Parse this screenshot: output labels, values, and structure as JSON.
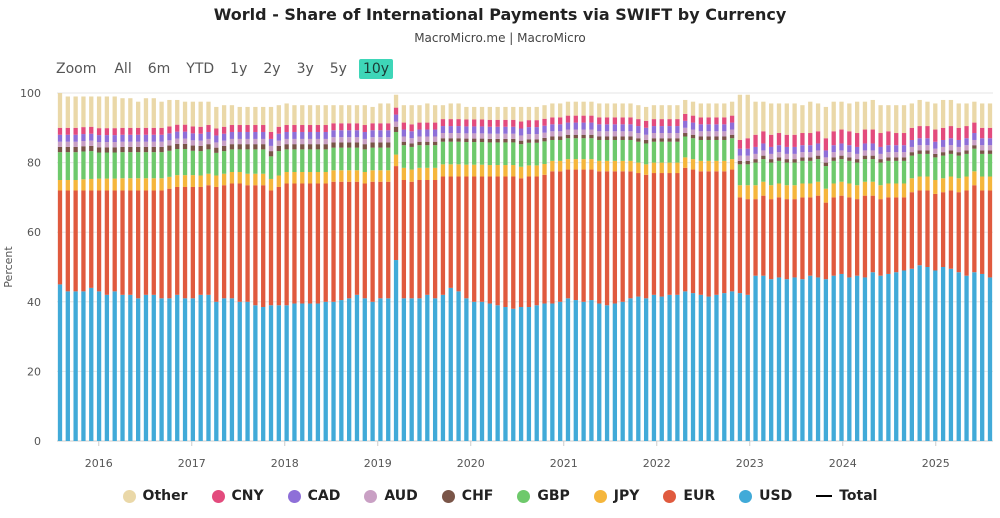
{
  "title": "World - Share of International Payments via SWIFT by Currency",
  "subtitle": "MacroMicro.me | MacroMicro",
  "zoom": {
    "label": "Zoom",
    "buttons": [
      "All",
      "6m",
      "YTD",
      "1y",
      "2y",
      "3y",
      "5y",
      "10y"
    ],
    "active": "10y"
  },
  "chart_data": {
    "type": "bar",
    "stacked": true,
    "ylabel": "Percent",
    "ylim": [
      0,
      100
    ],
    "yticks": [
      0,
      20,
      40,
      60,
      80,
      100
    ],
    "x_tick_labels": [
      "2016",
      "2017",
      "2018",
      "2019",
      "2020",
      "2021",
      "2022",
      "2023",
      "2024",
      "2025"
    ],
    "x_start": "2015-08",
    "x_end": "2025-08",
    "grid": "horizontal",
    "legend_position": "bottom",
    "series": [
      {
        "name": "USD",
        "color": "#41aad8",
        "values": [
          45.0,
          43.0,
          43.0,
          43.0,
          44.0,
          43.0,
          42.0,
          43.0,
          42.0,
          42.0,
          41.0,
          42.0,
          42.0,
          41.0,
          41.0,
          42.0,
          41.0,
          41.0,
          42.0,
          42.0,
          40.0,
          41.0,
          41.0,
          40.0,
          40.0,
          39.0,
          38.5,
          39.0,
          39.0,
          39.0,
          39.5,
          39.5,
          39.5,
          39.5,
          40.0,
          40.0,
          40.5,
          41.0,
          42.0,
          41.0,
          40.0,
          41.0,
          41.0,
          52.0,
          41.0,
          41.0,
          41.0,
          42.0,
          41.0,
          42.0,
          44.0,
          43.0,
          41.0,
          40.0,
          40.0,
          39.5,
          39.0,
          38.5,
          38.0,
          38.5,
          38.5,
          39.0,
          39.5,
          39.5,
          40.0,
          41.0,
          40.5,
          40.0,
          40.5,
          39.5,
          39.0,
          39.5,
          40.0,
          41.0,
          41.5,
          41.0,
          42.0,
          41.5,
          42.0,
          42.0,
          43.0,
          42.5,
          42.0,
          41.5,
          42.0,
          42.5,
          43.0,
          42.5,
          42.0,
          47.5,
          47.5,
          46.5,
          47.0,
          46.5,
          47.0,
          46.5,
          47.5,
          47.0,
          46.5,
          47.5,
          48.0,
          47.0,
          47.5,
          47.0,
          48.5,
          47.5,
          48.0,
          48.5,
          49.0,
          49.5,
          50.5,
          50.0,
          49.0,
          50.0,
          49.5,
          48.5,
          47.5,
          48.5,
          48.0,
          47.0
        ]
      },
      {
        "name": "EUR",
        "color": "#e05a3e",
        "values": [
          27.0,
          29.0,
          29.0,
          29.0,
          28.0,
          29.0,
          30.0,
          29.0,
          30.0,
          30.0,
          31.0,
          30.0,
          30.0,
          31.0,
          31.5,
          31.0,
          32.0,
          32.0,
          31.0,
          31.5,
          33.0,
          32.5,
          33.0,
          34.0,
          33.5,
          34.5,
          35.0,
          33.0,
          34.0,
          35.0,
          34.5,
          34.5,
          34.5,
          34.5,
          34.0,
          34.5,
          34.0,
          33.5,
          32.5,
          33.0,
          34.5,
          33.5,
          33.5,
          27.0,
          34.0,
          33.5,
          34.0,
          33.0,
          34.0,
          34.0,
          32.0,
          33.0,
          35.0,
          36.0,
          36.0,
          36.5,
          37.0,
          37.5,
          38.0,
          37.0,
          37.5,
          37.0,
          37.0,
          38.0,
          37.5,
          37.0,
          37.5,
          38.0,
          37.5,
          38.0,
          38.5,
          38.0,
          37.5,
          36.5,
          35.5,
          35.5,
          35.0,
          35.5,
          35.0,
          35.0,
          35.5,
          35.5,
          35.5,
          36.0,
          35.5,
          35.0,
          35.0,
          27.5,
          27.5,
          22.0,
          23.0,
          23.0,
          23.0,
          23.0,
          22.5,
          23.5,
          22.5,
          23.5,
          22.0,
          22.5,
          22.5,
          23.0,
          22.0,
          23.5,
          22.0,
          22.0,
          22.0,
          21.5,
          21.0,
          22.0,
          21.5,
          22.0,
          22.0,
          21.5,
          22.5,
          23.0,
          24.5,
          25.0,
          24.0,
          25.0
        ]
      },
      {
        "name": "JPY",
        "color": "#f5b63c",
        "values": [
          3.0,
          3.0,
          3.0,
          3.2,
          3.3,
          3.4,
          3.4,
          3.4,
          3.5,
          3.5,
          3.5,
          3.5,
          3.5,
          3.5,
          3.4,
          3.4,
          3.4,
          3.4,
          3.3,
          3.3,
          3.3,
          3.3,
          3.3,
          3.3,
          3.3,
          3.3,
          3.3,
          3.3,
          3.3,
          3.3,
          3.3,
          3.3,
          3.3,
          3.3,
          3.3,
          3.3,
          3.3,
          3.3,
          3.3,
          3.3,
          3.3,
          3.3,
          3.3,
          3.3,
          3.5,
          3.5,
          3.5,
          3.5,
          3.5,
          3.5,
          3.5,
          3.5,
          3.4,
          3.4,
          3.4,
          3.3,
          3.3,
          3.3,
          3.3,
          3.3,
          3.2,
          3.2,
          3.1,
          3.0,
          3.0,
          3.0,
          3.0,
          3.0,
          3.0,
          3.0,
          3.0,
          3.0,
          3.0,
          3.0,
          3.0,
          3.0,
          3.0,
          3.0,
          3.0,
          3.0,
          3.0,
          3.0,
          3.0,
          3.0,
          3.0,
          3.0,
          3.0,
          3.5,
          4.0,
          4.0,
          4.0,
          4.0,
          4.0,
          4.0,
          4.0,
          4.0,
          4.0,
          4.0,
          4.0,
          4.0,
          4.0,
          4.0,
          4.0,
          4.0,
          4.0,
          4.0,
          4.0,
          4.0,
          4.0,
          4.0,
          4.0,
          4.0,
          4.0,
          4.0,
          4.0,
          4.0,
          4.0,
          4.0,
          4.0,
          4.0
        ]
      },
      {
        "name": "GBP",
        "color": "#6ec96b",
        "values": [
          8.0,
          8.0,
          8.0,
          8.0,
          8.0,
          7.5,
          7.5,
          7.5,
          7.5,
          7.5,
          7.5,
          7.5,
          7.5,
          7.5,
          7.5,
          7.5,
          7.5,
          7.0,
          7.0,
          7.0,
          6.5,
          6.5,
          6.5,
          6.5,
          7.0,
          7.0,
          7.0,
          6.5,
          7.0,
          6.5,
          6.5,
          6.5,
          6.5,
          6.5,
          6.5,
          6.5,
          6.5,
          6.5,
          6.5,
          6.5,
          6.5,
          6.5,
          6.5,
          6.5,
          6.5,
          6.5,
          6.5,
          6.5,
          6.5,
          6.5,
          6.5,
          6.5,
          6.5,
          6.5,
          6.5,
          6.5,
          6.5,
          6.5,
          6.5,
          6.5,
          6.5,
          6.5,
          6.5,
          6.0,
          6.0,
          6.0,
          6.0,
          6.0,
          6.0,
          6.0,
          6.0,
          6.0,
          6.0,
          6.0,
          6.0,
          6.0,
          6.0,
          6.0,
          6.0,
          6.0,
          6.0,
          6.0,
          6.0,
          6.0,
          6.0,
          6.0,
          6.0,
          6.0,
          6.0,
          6.5,
          6.5,
          6.5,
          6.5,
          6.5,
          6.5,
          6.5,
          6.5,
          6.5,
          6.5,
          6.5,
          6.5,
          6.5,
          6.5,
          6.5,
          6.5,
          6.5,
          6.5,
          6.5,
          6.5,
          6.5,
          6.5,
          6.5,
          6.5,
          6.5,
          6.5,
          6.5,
          6.5,
          6.5,
          6.5,
          6.5
        ]
      },
      {
        "name": "CHF",
        "color": "#7a5548",
        "values": [
          1.5,
          1.5,
          1.5,
          1.5,
          1.5,
          1.5,
          1.5,
          1.5,
          1.5,
          1.5,
          1.5,
          1.5,
          1.5,
          1.5,
          1.5,
          1.5,
          1.5,
          1.5,
          1.5,
          1.5,
          1.5,
          1.5,
          1.5,
          1.5,
          1.5,
          1.5,
          1.5,
          1.5,
          1.5,
          1.5,
          1.5,
          1.5,
          1.5,
          1.5,
          1.5,
          1.5,
          1.5,
          1.5,
          1.5,
          1.5,
          1.5,
          1.5,
          1.5,
          1.5,
          1.0,
          1.0,
          1.0,
          1.0,
          1.0,
          1.0,
          1.0,
          1.0,
          1.0,
          1.0,
          1.0,
          1.0,
          1.0,
          1.0,
          1.0,
          1.0,
          1.0,
          1.0,
          1.0,
          1.0,
          1.0,
          1.0,
          1.0,
          1.0,
          1.0,
          1.0,
          1.0,
          1.0,
          1.0,
          1.0,
          1.0,
          1.0,
          1.0,
          1.0,
          1.0,
          1.0,
          1.0,
          1.0,
          1.0,
          1.0,
          1.0,
          1.0,
          1.0,
          1.0,
          1.0,
          1.0,
          1.0,
          1.0,
          1.0,
          1.0,
          1.0,
          1.0,
          1.0,
          1.0,
          1.0,
          1.0,
          1.0,
          1.0,
          1.0,
          1.0,
          1.0,
          1.0,
          1.0,
          1.0,
          1.0,
          1.0,
          1.0,
          1.0,
          1.0,
          1.0,
          1.0,
          1.0,
          1.0,
          1.0,
          1.0,
          1.0
        ]
      },
      {
        "name": "AUD",
        "color": "#c9a0c4",
        "values": [
          1.5,
          1.5,
          1.5,
          1.5,
          1.5,
          1.5,
          1.5,
          1.5,
          1.5,
          1.5,
          1.5,
          1.5,
          1.5,
          1.5,
          1.5,
          1.5,
          1.5,
          1.5,
          1.5,
          1.5,
          1.5,
          1.5,
          1.5,
          1.5,
          1.5,
          1.5,
          1.5,
          1.5,
          1.5,
          1.5,
          1.5,
          1.5,
          1.5,
          1.5,
          1.5,
          1.5,
          1.5,
          1.5,
          1.5,
          1.5,
          1.5,
          1.5,
          1.5,
          1.5,
          1.5,
          1.5,
          1.5,
          1.5,
          1.5,
          1.5,
          1.5,
          1.5,
          1.5,
          1.5,
          1.5,
          1.5,
          1.5,
          1.5,
          1.5,
          1.5,
          1.5,
          1.5,
          1.5,
          1.5,
          1.5,
          1.5,
          1.5,
          1.5,
          1.5,
          1.5,
          1.5,
          1.5,
          1.5,
          1.5,
          1.5,
          1.5,
          1.5,
          1.5,
          1.5,
          1.5,
          1.5,
          1.5,
          1.5,
          1.5,
          1.5,
          1.5,
          1.5,
          1.5,
          1.5,
          1.5,
          1.5,
          1.5,
          1.5,
          1.5,
          1.5,
          1.5,
          1.5,
          1.5,
          1.5,
          1.5,
          1.5,
          1.5,
          1.5,
          1.5,
          1.5,
          1.5,
          1.5,
          1.5,
          1.5,
          1.5,
          1.5,
          1.5,
          1.5,
          1.5,
          1.5,
          1.5,
          1.5,
          1.5,
          1.5,
          1.5
        ]
      },
      {
        "name": "CAD",
        "color": "#8e6fd8",
        "values": [
          2.0,
          2.0,
          2.0,
          2.0,
          2.0,
          2.0,
          2.0,
          2.0,
          2.0,
          2.0,
          2.0,
          2.0,
          2.0,
          2.0,
          2.0,
          2.0,
          2.0,
          2.0,
          2.0,
          2.0,
          2.0,
          2.0,
          2.0,
          2.0,
          2.0,
          2.0,
          2.0,
          2.0,
          2.0,
          2.0,
          2.0,
          2.0,
          2.0,
          2.0,
          2.0,
          2.0,
          2.0,
          2.0,
          2.0,
          2.0,
          2.0,
          2.0,
          2.0,
          2.0,
          2.0,
          2.0,
          2.0,
          2.0,
          2.0,
          2.0,
          2.0,
          2.0,
          2.0,
          2.0,
          2.0,
          2.0,
          2.0,
          2.0,
          2.0,
          2.0,
          2.0,
          2.0,
          2.0,
          2.0,
          2.0,
          2.0,
          2.0,
          2.0,
          2.0,
          2.0,
          2.0,
          2.0,
          2.0,
          2.0,
          2.0,
          2.0,
          2.0,
          2.0,
          2.0,
          2.0,
          2.0,
          2.0,
          2.0,
          2.0,
          2.0,
          2.0,
          2.0,
          2.0,
          2.0,
          2.0,
          2.0,
          2.0,
          2.0,
          2.0,
          2.0,
          2.0,
          2.0,
          2.0,
          2.0,
          2.0,
          2.0,
          2.0,
          2.0,
          2.0,
          2.0,
          2.0,
          2.0,
          2.0,
          2.0,
          2.0,
          2.0,
          2.0,
          2.0,
          2.0,
          2.0,
          2.0,
          2.0,
          2.0,
          2.0,
          2.0
        ]
      },
      {
        "name": "CNY",
        "color": "#e34b7d",
        "values": [
          2.0,
          2.0,
          2.0,
          2.0,
          2.0,
          2.0,
          2.0,
          2.0,
          2.0,
          2.0,
          2.0,
          2.0,
          2.0,
          2.0,
          2.0,
          2.0,
          2.0,
          2.0,
          2.0,
          2.0,
          2.0,
          2.0,
          2.0,
          2.0,
          2.0,
          2.0,
          2.0,
          2.0,
          2.0,
          2.0,
          2.0,
          2.0,
          2.0,
          2.0,
          2.0,
          2.0,
          2.0,
          2.0,
          2.0,
          2.0,
          2.0,
          2.0,
          2.0,
          2.0,
          2.0,
          2.0,
          2.0,
          2.0,
          2.0,
          2.0,
          2.0,
          2.0,
          2.0,
          2.0,
          2.0,
          2.0,
          2.0,
          2.0,
          2.0,
          2.0,
          2.0,
          2.0,
          2.0,
          2.0,
          2.0,
          2.0,
          2.0,
          2.0,
          2.0,
          2.0,
          2.0,
          2.0,
          2.0,
          2.0,
          2.0,
          2.0,
          2.0,
          2.0,
          2.0,
          2.0,
          2.0,
          2.0,
          2.0,
          2.0,
          2.0,
          2.0,
          2.0,
          2.5,
          3.0,
          3.5,
          3.5,
          3.5,
          3.5,
          3.5,
          3.5,
          3.5,
          3.5,
          3.5,
          3.5,
          4.0,
          4.0,
          4.0,
          4.0,
          4.0,
          4.0,
          4.0,
          4.0,
          3.5,
          3.5,
          3.5,
          3.5,
          3.5,
          3.5,
          3.5,
          3.5,
          3.5,
          3.5,
          3.0,
          3.0,
          3.0
        ]
      },
      {
        "name": "Other",
        "color": "#ead8a8",
        "values": [
          10.0,
          9.0,
          9.0,
          8.8,
          8.7,
          9.1,
          9.1,
          9.1,
          8.5,
          8.5,
          7.5,
          8.5,
          8.5,
          7.5,
          7.6,
          7.1,
          6.6,
          7.1,
          7.2,
          6.7,
          6.2,
          6.2,
          5.7,
          5.2,
          5.2,
          5.2,
          5.2,
          7.2,
          6.2,
          6.2,
          5.7,
          5.7,
          5.7,
          5.7,
          5.7,
          5.2,
          5.2,
          5.2,
          5.2,
          5.7,
          4.7,
          5.7,
          5.7,
          3.7,
          5.0,
          5.5,
          5.0,
          5.5,
          5.0,
          4.0,
          4.5,
          4.5,
          3.6,
          3.6,
          3.6,
          3.7,
          3.7,
          3.7,
          3.7,
          4.2,
          3.8,
          3.8,
          3.9,
          4.0,
          4.0,
          4.0,
          4.0,
          4.0,
          4.0,
          4.0,
          4.0,
          4.0,
          4.0,
          4.0,
          4.0,
          4.0,
          4.0,
          4.0,
          4.0,
          4.0,
          4.0,
          4.0,
          4.0,
          4.0,
          4.0,
          4.0,
          4.0,
          13.0,
          12.5,
          9.5,
          8.5,
          9.0,
          8.5,
          9.0,
          9.0,
          8.0,
          9.0,
          8.0,
          9.0,
          8.5,
          8.0,
          8.0,
          9.0,
          8.0,
          8.5,
          8.0,
          7.5,
          8.0,
          8.0,
          7.0,
          7.5,
          7.0,
          7.5,
          8.0,
          7.5,
          7.0,
          6.5,
          6.0,
          7.0,
          7.0
        ]
      }
    ],
    "total": {
      "name": "Total",
      "color": "#000000"
    }
  },
  "legend": [
    {
      "name": "Other",
      "color": "#ead8a8"
    },
    {
      "name": "CNY",
      "color": "#e34b7d"
    },
    {
      "name": "CAD",
      "color": "#8e6fd8"
    },
    {
      "name": "AUD",
      "color": "#c9a0c4"
    },
    {
      "name": "CHF",
      "color": "#7a5548"
    },
    {
      "name": "GBP",
      "color": "#6ec96b"
    },
    {
      "name": "JPY",
      "color": "#f5b63c"
    },
    {
      "name": "EUR",
      "color": "#e05a3e"
    },
    {
      "name": "USD",
      "color": "#41aad8"
    },
    {
      "name": "Total",
      "color": "#000000",
      "line": true
    }
  ]
}
